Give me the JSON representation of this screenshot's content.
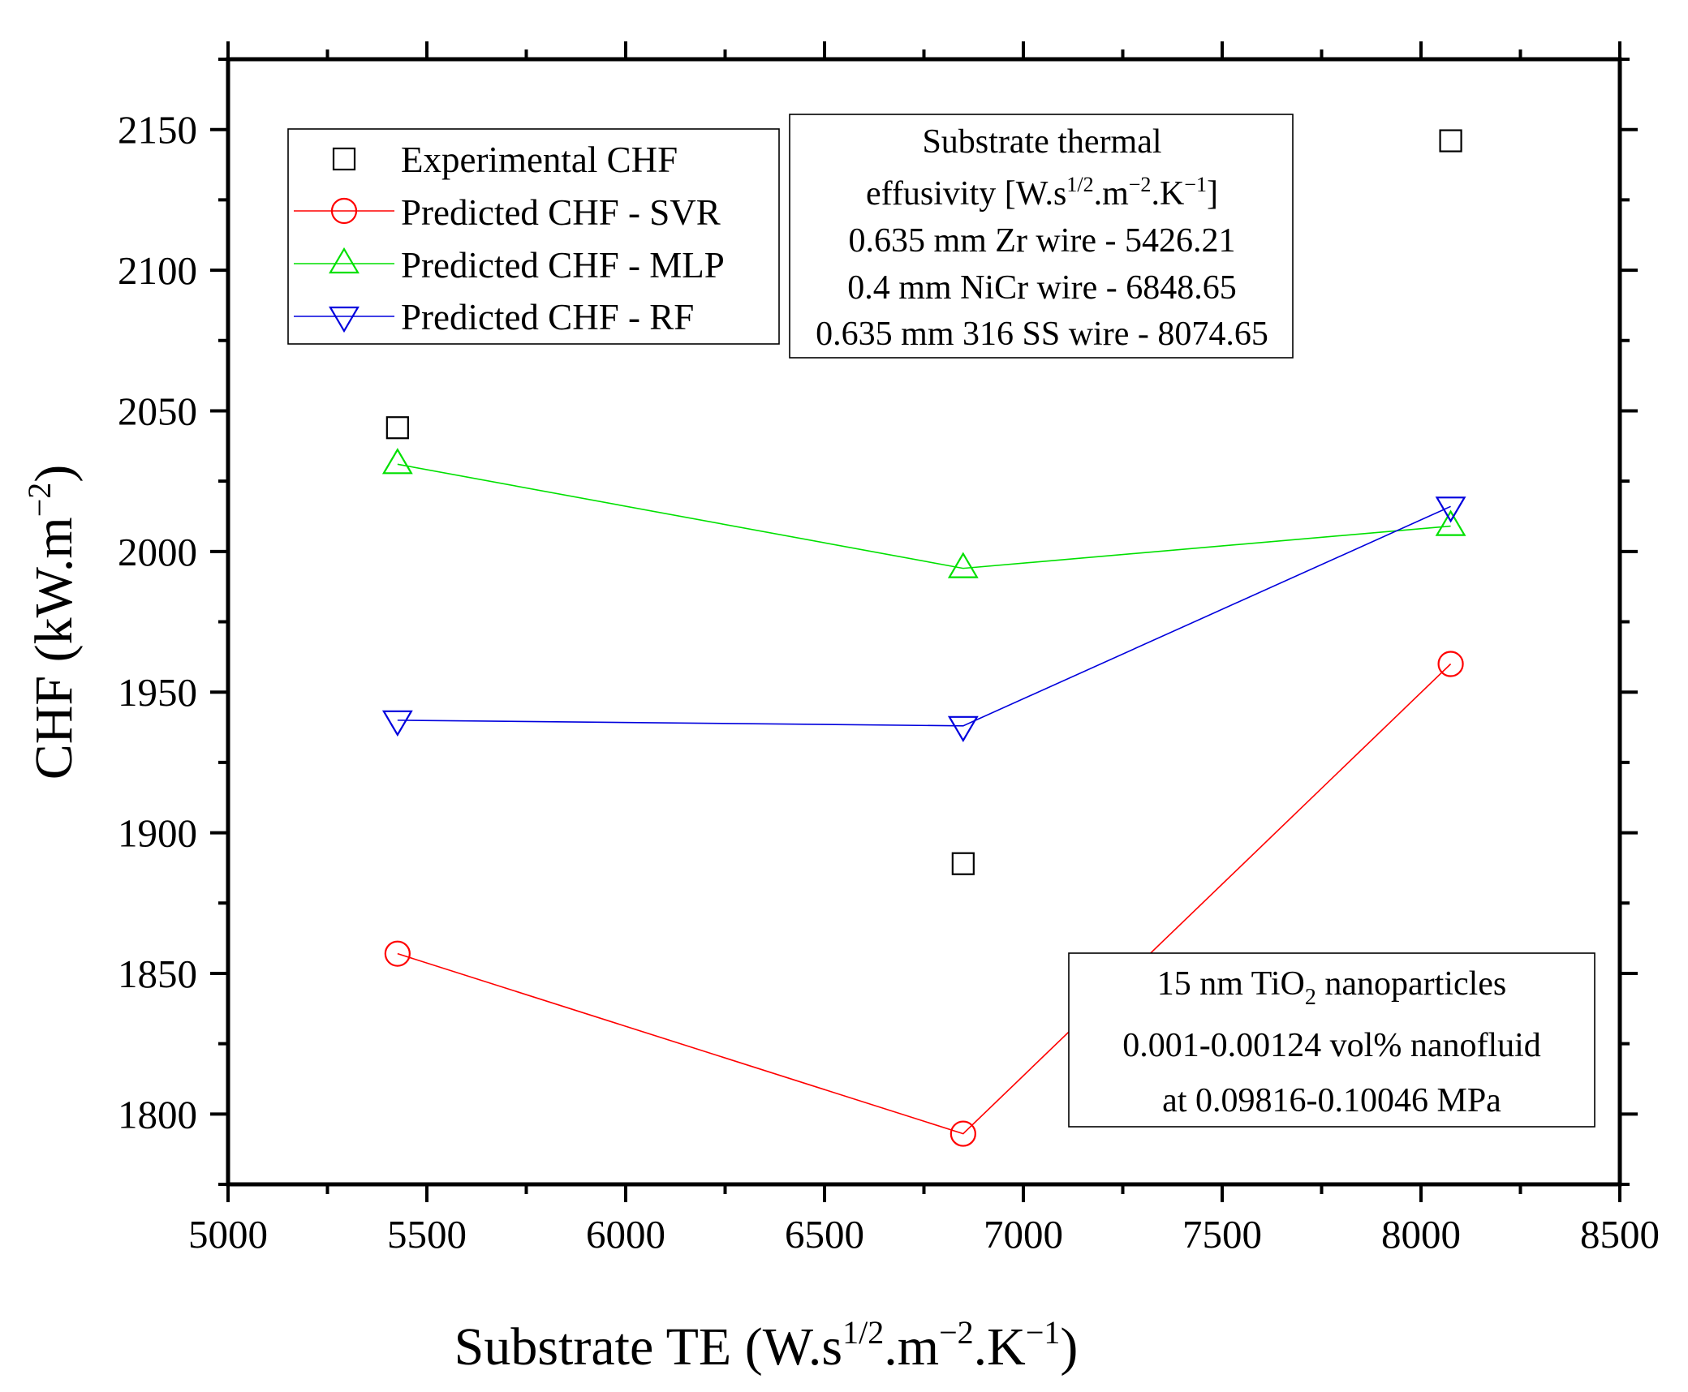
{
  "chart_data": {
    "type": "scatter",
    "xlabel_parts": {
      "base": "Substrate TE (W.s",
      "sup1": "1/2",
      "mid1": ".m",
      "sup2": "−2",
      "mid2": ".K",
      "sup3": "−1",
      "end": ")"
    },
    "ylabel_parts": {
      "base": "CHF (kW.m",
      "sup1": "−2",
      "end": ")"
    },
    "xlim": [
      5000,
      8500
    ],
    "ylim": [
      1775,
      2175
    ],
    "x_ticks": [
      5000,
      5500,
      6000,
      6500,
      7000,
      7500,
      8000,
      8500
    ],
    "y_ticks": [
      1800,
      1850,
      1900,
      1950,
      2000,
      2050,
      2100,
      2150
    ],
    "x": [
      5426.21,
      6848.65,
      8074.65
    ],
    "series": [
      {
        "name": "Experimental CHF",
        "marker": "square",
        "line": false,
        "color": "#000000",
        "values": [
          2044,
          1889,
          2146
        ]
      },
      {
        "name": "Predicted CHF - SVR",
        "marker": "circle",
        "line": true,
        "color": "#ff0000",
        "values": [
          1857,
          1793,
          1960
        ]
      },
      {
        "name": "Predicted CHF - MLP",
        "marker": "triangle-up",
        "line": true,
        "color": "#00e000",
        "values": [
          2031,
          1994,
          2009
        ]
      },
      {
        "name": "Predicted CHF - RF",
        "marker": "triangle-down",
        "line": true,
        "color": "#0000dd",
        "values": [
          1940,
          1938,
          2016
        ]
      }
    ],
    "legend_position": "top-left",
    "grid": false,
    "annotations": {
      "effusivity_box": {
        "line1": "Substrate thermal",
        "line2_parts": {
          "base": "effusivity [W.s",
          "sup1": "1/2",
          "mid1": ".m",
          "sup2": "−2",
          "mid2": ".K",
          "sup3": "−1",
          "end": "]"
        },
        "line3": "0.635 mm Zr wire - 5426.21",
        "line4": "0.4 mm NiCr wire - 6848.65",
        "line5": "0.635 mm 316 SS wire - 8074.65"
      },
      "fluid_box": {
        "line1_parts": {
          "base": "15 nm TiO",
          "sub": "2",
          "end": " nanoparticles"
        },
        "line2": "0.001-0.00124 vol% nanofluid",
        "line3": "at 0.09816-0.10046 MPa"
      }
    }
  }
}
